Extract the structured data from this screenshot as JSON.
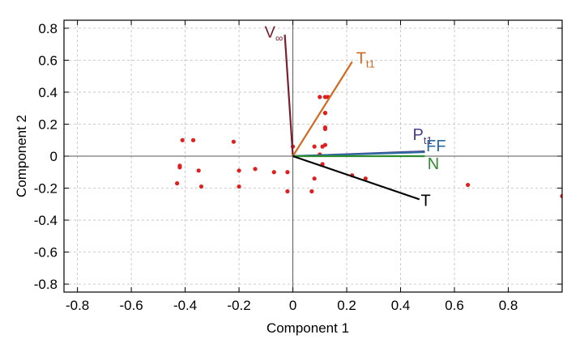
{
  "chart_data": {
    "type": "biplot",
    "title": "",
    "xlabel": "Component 1",
    "ylabel": "Component 2",
    "xlim": [
      -0.85,
      1.0
    ],
    "ylim": [
      -0.85,
      0.85
    ],
    "grid": true,
    "xticks": [
      {
        "value": -0.8,
        "label": "-0.8"
      },
      {
        "value": -0.6,
        "label": "-0.6"
      },
      {
        "value": -0.4,
        "label": "-0.4"
      },
      {
        "value": -0.2,
        "label": "-0.2"
      },
      {
        "value": 0,
        "label": "0"
      },
      {
        "value": 0.2,
        "label": "0.2"
      },
      {
        "value": 0.4,
        "label": "0.4"
      },
      {
        "value": 0.6,
        "label": "0.6"
      },
      {
        "value": 0.8,
        "label": "0.8"
      }
    ],
    "yticks": [
      {
        "value": 0.8,
        "label": "0.8"
      },
      {
        "value": 0.6,
        "label": "0.6"
      },
      {
        "value": 0.4,
        "label": "0.4"
      },
      {
        "value": 0.2,
        "label": "0.2"
      },
      {
        "value": 0,
        "label": "0"
      },
      {
        "value": -0.2,
        "label": "-0.2"
      },
      {
        "value": -0.4,
        "label": "-0.4"
      },
      {
        "value": -0.6,
        "label": "-0.6"
      },
      {
        "value": -0.8,
        "label": "-0.8"
      }
    ],
    "vectors": [
      {
        "name": "V",
        "sub": "∞",
        "end": [
          -0.03,
          0.76
        ],
        "color": "#7b1e2e"
      },
      {
        "name": "T",
        "sub": "t1",
        "end": [
          0.22,
          0.59
        ],
        "color": "#d2691e"
      },
      {
        "name": "P",
        "sub": "t1",
        "end": [
          0.49,
          0.03
        ],
        "color": "#4b3a8c"
      },
      {
        "name": "FF",
        "sub": "",
        "end": [
          0.49,
          0.025
        ],
        "color": "#2c6aa0"
      },
      {
        "name": "N",
        "sub": "",
        "end": [
          0.49,
          0.0
        ],
        "color": "#2e8b2e"
      },
      {
        "name": "T",
        "sub": "",
        "end": [
          0.47,
          -0.27
        ],
        "color": "#000000"
      }
    ],
    "points": [
      [
        -0.41,
        0.1
      ],
      [
        -0.37,
        0.1
      ],
      [
        -0.22,
        0.09
      ],
      [
        -0.42,
        -0.07
      ],
      [
        -0.42,
        -0.06
      ],
      [
        -0.35,
        -0.09
      ],
      [
        -0.43,
        -0.17
      ],
      [
        -0.34,
        -0.19
      ],
      [
        -0.2,
        -0.09
      ],
      [
        -0.14,
        -0.08
      ],
      [
        -0.2,
        -0.19
      ],
      [
        -0.07,
        -0.1
      ],
      [
        -0.02,
        -0.1
      ],
      [
        -0.02,
        -0.22
      ],
      [
        0.0,
        0.06
      ],
      [
        0.08,
        0.06
      ],
      [
        0.08,
        -0.14
      ],
      [
        0.07,
        -0.22
      ],
      [
        0.1,
        0.37
      ],
      [
        0.12,
        0.37
      ],
      [
        0.13,
        0.37
      ],
      [
        0.12,
        0.27
      ],
      [
        0.12,
        0.27
      ],
      [
        0.12,
        0.17
      ],
      [
        0.12,
        0.18
      ],
      [
        0.12,
        0.07
      ],
      [
        0.11,
        0.06
      ],
      [
        0.1,
        0.01
      ],
      [
        0.11,
        -0.05
      ],
      [
        0.22,
        -0.12
      ],
      [
        0.27,
        -0.14
      ],
      [
        0.65,
        -0.18
      ],
      [
        1.0,
        -0.25
      ]
    ],
    "point_color": "#e02020"
  }
}
